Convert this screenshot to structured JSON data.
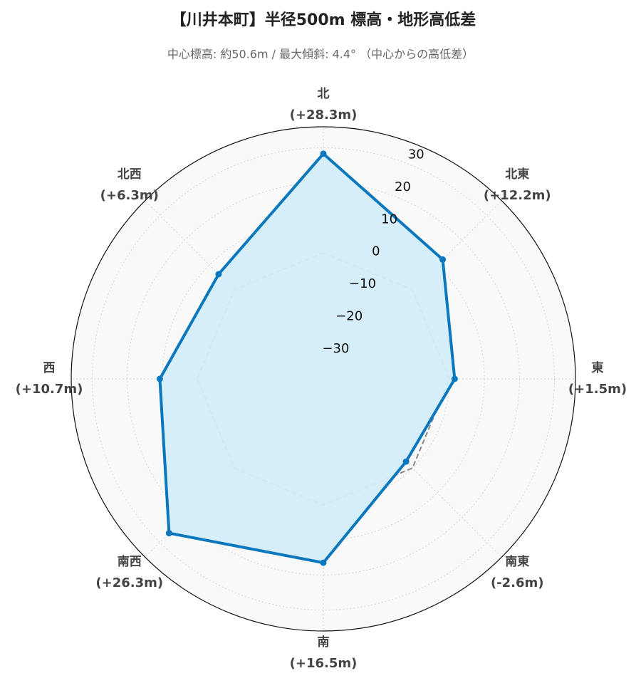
{
  "chart_data": {
    "type": "radar",
    "title": "【川井本町】半径500m 標高・地形高低差",
    "subtitle": "中心標高: 約50.6m / 最大傾斜: 4.4° （中心からの高低差）",
    "categories": [
      "北",
      "北東",
      "東",
      "南東",
      "南",
      "南西",
      "西",
      "北西"
    ],
    "values": [
      28.3,
      12.2,
      1.5,
      -2.6,
      16.5,
      26.3,
      10.7,
      6.3
    ],
    "value_labels": [
      "(+28.3m)",
      "(+12.2m)",
      "(+1.5m)",
      "(-2.6m)",
      "(+16.5m)",
      "(+26.3m)",
      "(+10.7m)",
      "(+6.3m)"
    ],
    "color": "#0b77bd",
    "fill_color": "#d3edf9",
    "reference_value": 0,
    "reference_color": "#888888",
    "ylim": [
      -36,
      36
    ],
    "yticks": [
      {
        "value": -30,
        "label": "−30"
      },
      {
        "value": -20,
        "label": "−20"
      },
      {
        "value": -10,
        "label": "−10"
      },
      0,
      10,
      20,
      30
    ],
    "grid": true
  }
}
